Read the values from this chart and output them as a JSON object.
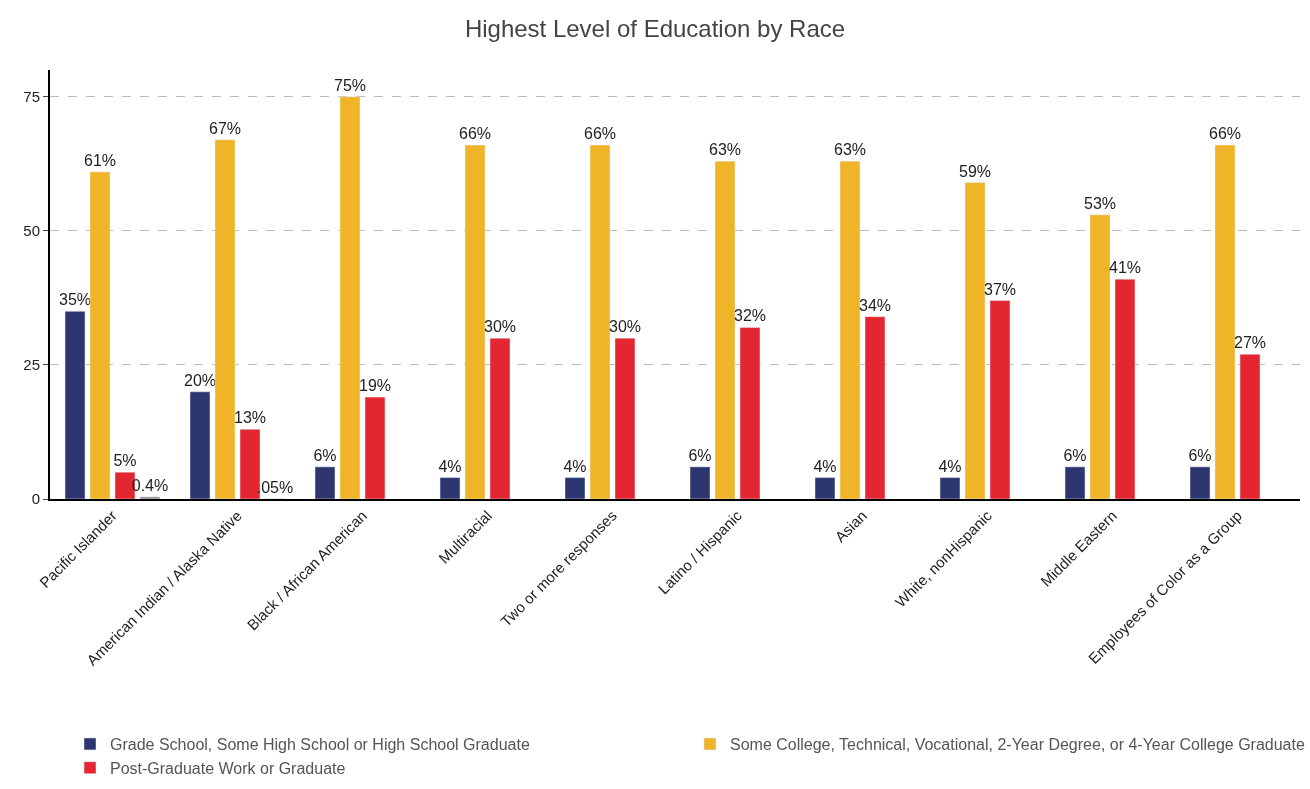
{
  "chart_data": {
    "type": "bar",
    "title": "Highest Level of Education by Race",
    "categories": [
      "Pacific Islander",
      "American Indian / Alaska Native",
      "Black / African American",
      "Multiracial",
      "Two or more responses",
      "Latino / Hispanic",
      "Asian",
      "White, nonHispanic",
      "Middle Eastern",
      "Employees of Color as a Group"
    ],
    "series": [
      {
        "name": "Grade School, Some High School or High School Graduate",
        "color": "#2e3670",
        "values": [
          35,
          20,
          6,
          4,
          4,
          6,
          4,
          4,
          6,
          6
        ],
        "value_labels": [
          "35%",
          "20%",
          "6%",
          "4%",
          "4%",
          "6%",
          "4%",
          "4%",
          "6%",
          "6%"
        ]
      },
      {
        "name": "Some College, Technical, Vocational, 2-Year Degree, or 4-Year College Graduate",
        "color": "#f0b429",
        "values": [
          61,
          67,
          75,
          66,
          66,
          63,
          63,
          59,
          53,
          66
        ],
        "value_labels": [
          "61%",
          "67%",
          "75%",
          "66%",
          "66%",
          "63%",
          "63%",
          "59%",
          "53%",
          "66%"
        ]
      },
      {
        "name": "Post-Graduate Work or Graduate",
        "color": "#e3262f",
        "values": [
          5,
          13,
          19,
          30,
          30,
          32,
          34,
          37,
          41,
          27
        ],
        "value_labels": [
          "5%",
          "13%",
          "19%",
          "30%",
          "30%",
          "32%",
          "34%",
          "37%",
          "41%",
          "27%"
        ]
      },
      {
        "color": "#888888",
        "values": [
          0.4,
          0.05,
          null,
          null,
          null,
          null,
          null,
          null,
          null,
          null
        ],
        "value_labels": [
          "0.4%",
          ".05%",
          null,
          null,
          null,
          null,
          null,
          null,
          null,
          null
        ]
      }
    ],
    "ylim": [
      0,
      80
    ],
    "yticks": [
      0,
      25,
      50,
      75
    ],
    "grid": "y",
    "legend": "bottom"
  }
}
